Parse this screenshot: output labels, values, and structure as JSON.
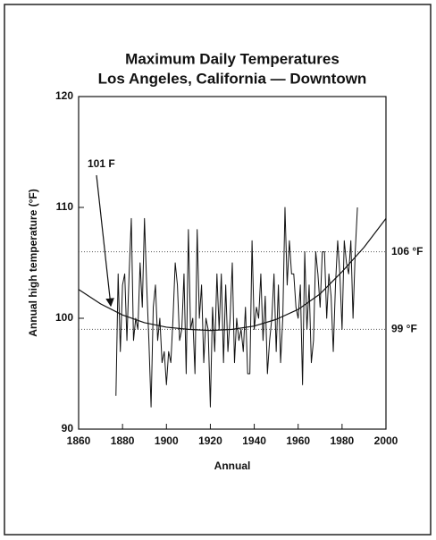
{
  "chart_data": {
    "type": "line",
    "title": [
      "Maximum Daily Temperatures",
      "Los Angeles, California — Downtown"
    ],
    "x_label": "Annual",
    "y_label": "Annual high temperature (°F)",
    "xlim": [
      1860,
      2000
    ],
    "xticks": [
      1860,
      1880,
      1900,
      1920,
      1940,
      1960,
      1980,
      2000
    ],
    "ylim": [
      90,
      120
    ],
    "yticks": [
      90,
      100,
      110,
      120
    ],
    "series": [
      {
        "color": "#111111",
        "x": [
          1877,
          1878,
          1879,
          1880,
          1881,
          1882,
          1883,
          1884,
          1885,
          1886,
          1887,
          1888,
          1889,
          1890,
          1891,
          1892,
          1893,
          1894,
          1895,
          1896,
          1897,
          1898,
          1899,
          1900,
          1901,
          1902,
          1903,
          1904,
          1905,
          1906,
          1907,
          1908,
          1909,
          1910,
          1911,
          1912,
          1913,
          1914,
          1915,
          1916,
          1917,
          1918,
          1919,
          1920,
          1921,
          1922,
          1923,
          1924,
          1925,
          1926,
          1927,
          1928,
          1929,
          1930,
          1931,
          1932,
          1933,
          1934,
          1935,
          1936,
          1937,
          1938,
          1939,
          1940,
          1941,
          1942,
          1943,
          1944,
          1945,
          1946,
          1947,
          1948,
          1949,
          1950,
          1951,
          1952,
          1953,
          1954,
          1955,
          1956,
          1957,
          1958,
          1959,
          1960,
          1961,
          1962,
          1963,
          1964,
          1965,
          1966,
          1967,
          1968,
          1969,
          1970,
          1971,
          1972,
          1973,
          1974,
          1975,
          1976,
          1977,
          1978,
          1979,
          1980,
          1981,
          1982,
          1983,
          1984,
          1985,
          1986,
          1987
        ],
        "values": [
          93,
          104,
          97,
          103,
          104,
          98,
          104,
          109,
          98,
          100,
          99,
          105,
          101,
          109,
          103,
          98,
          92,
          101,
          103,
          98,
          100,
          96,
          97,
          94,
          97,
          96,
          100,
          105,
          103,
          98,
          99,
          104,
          95,
          108,
          99,
          100,
          95,
          108,
          100,
          103,
          96,
          100,
          99,
          92,
          101,
          97,
          104,
          99,
          104,
          96,
          103,
          97,
          100,
          105,
          96,
          100,
          98,
          99,
          97,
          101,
          95,
          95,
          107,
          99,
          101,
          100,
          104,
          98,
          102,
          95,
          98,
          100,
          104,
          97,
          103,
          96,
          100,
          110,
          103,
          107,
          104,
          104,
          101,
          100,
          103,
          94,
          106,
          99,
          103,
          96,
          98,
          106,
          104,
          101,
          106,
          106,
          100,
          104,
          102,
          97,
          103,
          107,
          104,
          99,
          107,
          105,
          104,
          107,
          100,
          106,
          110
        ]
      }
    ],
    "trend": {
      "color": "#111111",
      "x": [
        1860,
        1870,
        1880,
        1890,
        1900,
        1910,
        1920,
        1930,
        1940,
        1950,
        1960,
        1970,
        1980,
        1990,
        2000
      ],
      "values": [
        102.6,
        101.3,
        100.3,
        99.6,
        99.2,
        99.0,
        98.9,
        99.0,
        99.3,
        99.9,
        100.8,
        102.2,
        104.2,
        106.4,
        109
      ]
    },
    "reference_lines": [
      {
        "value": 106,
        "label": "106 °F"
      },
      {
        "value": 99,
        "label": "99 °F"
      }
    ],
    "annotation": "101 F"
  }
}
